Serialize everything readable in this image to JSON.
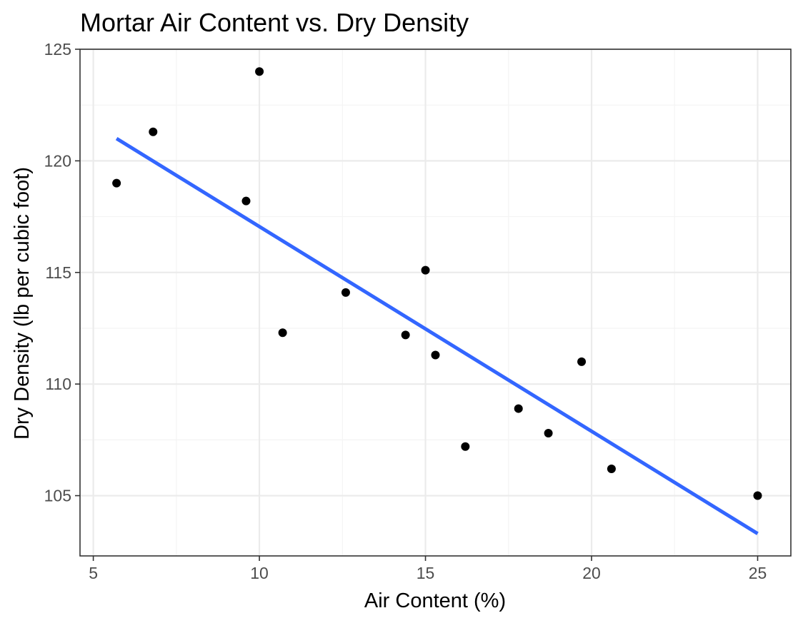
{
  "chart_data": {
    "type": "scatter",
    "title": "Mortar Air Content vs. Dry Density",
    "xlabel": "Air Content (%)",
    "ylabel": "Dry Density (lb per cubic foot)",
    "xlim": [
      4.6,
      26.0
    ],
    "ylim": [
      102.3,
      125.0
    ],
    "x_ticks": [
      5,
      10,
      15,
      20,
      25
    ],
    "y_ticks": [
      105,
      110,
      115,
      120,
      125
    ],
    "x_minor": [
      7.5,
      12.5,
      17.5,
      22.5
    ],
    "y_minor": [
      107.5,
      112.5,
      117.5,
      122.5
    ],
    "grid": true,
    "points": [
      {
        "x": 5.7,
        "y": 119.0
      },
      {
        "x": 6.8,
        "y": 121.3
      },
      {
        "x": 9.6,
        "y": 118.2
      },
      {
        "x": 10.0,
        "y": 124.0
      },
      {
        "x": 10.7,
        "y": 112.3
      },
      {
        "x": 12.6,
        "y": 114.1
      },
      {
        "x": 14.4,
        "y": 112.2
      },
      {
        "x": 15.0,
        "y": 115.1
      },
      {
        "x": 15.3,
        "y": 111.3
      },
      {
        "x": 16.2,
        "y": 107.2
      },
      {
        "x": 17.8,
        "y": 108.9
      },
      {
        "x": 18.7,
        "y": 107.8
      },
      {
        "x": 19.7,
        "y": 111.0
      },
      {
        "x": 20.6,
        "y": 106.2
      },
      {
        "x": 25.0,
        "y": 105.0
      }
    ],
    "fit_line": {
      "x": [
        5.7,
        25.0
      ],
      "y": [
        121.0,
        103.3
      ],
      "color": "#3366ff"
    },
    "point_color": "#000000"
  }
}
